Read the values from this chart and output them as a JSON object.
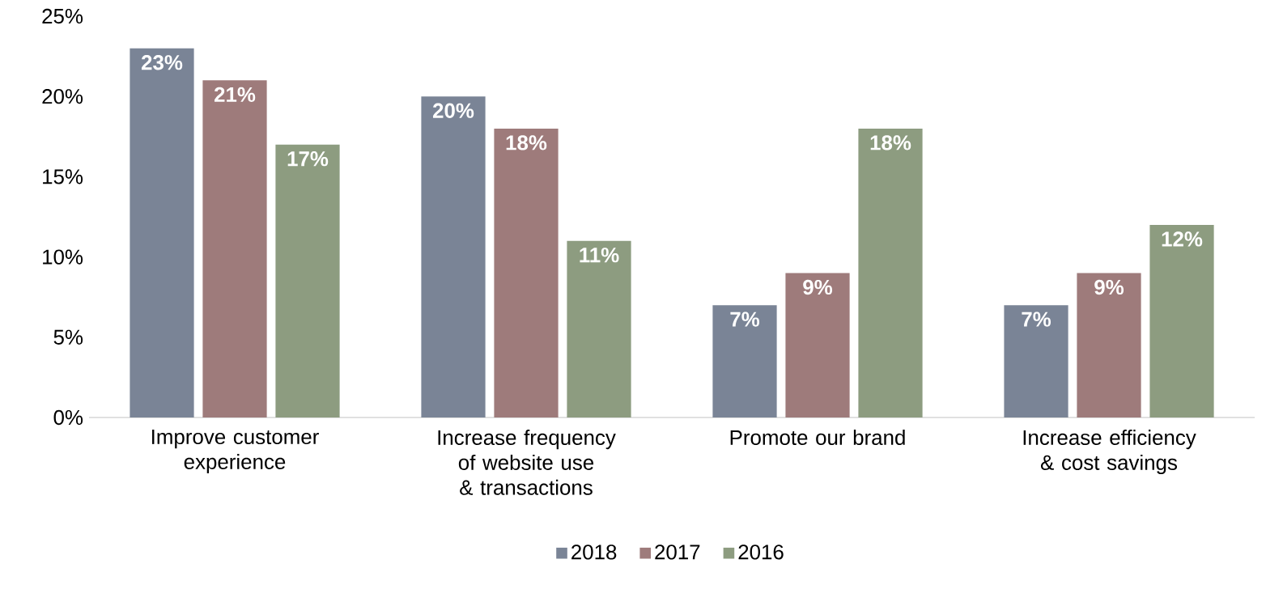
{
  "chart_data": {
    "type": "bar",
    "categories": [
      "Improve customer experience",
      "Increase frequency of website use & transactions",
      "Promote our brand",
      "Increase efficiency & cost savings"
    ],
    "series": [
      {
        "name": "2018",
        "color": "#7a8496",
        "values": [
          23,
          20,
          7,
          7
        ],
        "value_labels": [
          "23%",
          "20%",
          "7%",
          "7%"
        ]
      },
      {
        "name": "2017",
        "color": "#9e7b7b",
        "values": [
          21,
          18,
          9,
          9
        ],
        "value_labels": [
          "21%",
          "18%",
          "9%",
          "9%"
        ]
      },
      {
        "name": "2016",
        "color": "#8d9c80",
        "values": [
          17,
          11,
          18,
          12
        ],
        "value_labels": [
          "17%",
          "11%",
          "18%",
          "12%"
        ]
      }
    ],
    "ylim": [
      0,
      25
    ],
    "yticks": [
      {
        "value": 0,
        "label": "0%"
      },
      {
        "value": 5,
        "label": "5%"
      },
      {
        "value": 10,
        "label": "10%"
      },
      {
        "value": 15,
        "label": "15%"
      },
      {
        "value": 20,
        "label": "20%"
      },
      {
        "value": 25,
        "label": "25%"
      }
    ],
    "grid": false,
    "legend": "bottom"
  }
}
